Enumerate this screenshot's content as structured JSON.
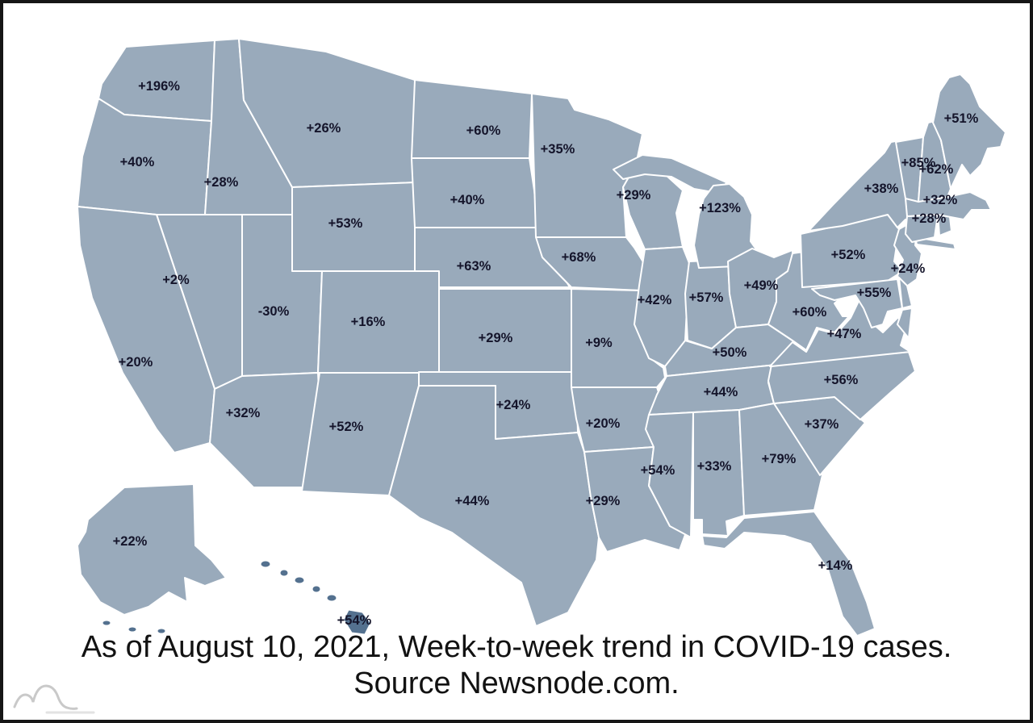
{
  "caption": {
    "line1": "As of August 10, 2021, Week-to-week trend in COVID-19 cases.",
    "line2": "Source Newsnode.com."
  },
  "colors": {
    "negative": "#cddcd9",
    "low": "#a6c4e9",
    "mid": "#6296cd",
    "high": "#54718f",
    "state_border": "#ffffff",
    "label": "#14142a",
    "frame": "#161616",
    "logo_gray": "#c9c9c9"
  },
  "map_data": {
    "type": "choropleth",
    "title": "Week-to-week trend in COVID-19 cases",
    "as_of": "August 10, 2021",
    "source": "Newsnode.com",
    "states": [
      {
        "id": "WA",
        "label": "+196%",
        "value": 196,
        "bin": "high"
      },
      {
        "id": "OR",
        "label": "+40%",
        "value": 40,
        "bin": "mid"
      },
      {
        "id": "CA",
        "label": "+20%",
        "value": 20,
        "bin": "low"
      },
      {
        "id": "NV",
        "label": "+2%",
        "value": 2,
        "bin": "low"
      },
      {
        "id": "ID",
        "label": "+28%",
        "value": 28,
        "bin": "mid"
      },
      {
        "id": "MT",
        "label": "+26%",
        "value": 26,
        "bin": "mid"
      },
      {
        "id": "WY",
        "label": "+53%",
        "value": 53,
        "bin": "high"
      },
      {
        "id": "UT",
        "label": "-30%",
        "value": -30,
        "bin": "negative"
      },
      {
        "id": "CO",
        "label": "+16%",
        "value": 16,
        "bin": "low"
      },
      {
        "id": "AZ",
        "label": "+32%",
        "value": 32,
        "bin": "mid"
      },
      {
        "id": "NM",
        "label": "+52%",
        "value": 52,
        "bin": "high"
      },
      {
        "id": "ND",
        "label": "+60%",
        "value": 60,
        "bin": "high"
      },
      {
        "id": "SD",
        "label": "+40%",
        "value": 40,
        "bin": "mid"
      },
      {
        "id": "NE",
        "label": "+63%",
        "value": 63,
        "bin": "high"
      },
      {
        "id": "KS",
        "label": "+29%",
        "value": 29,
        "bin": "mid"
      },
      {
        "id": "OK",
        "label": "+24%",
        "value": 24,
        "bin": "low"
      },
      {
        "id": "TX",
        "label": "+44%",
        "value": 44,
        "bin": "mid"
      },
      {
        "id": "MN",
        "label": "+35%",
        "value": 35,
        "bin": "mid"
      },
      {
        "id": "IA",
        "label": "+68%",
        "value": 68,
        "bin": "high"
      },
      {
        "id": "MO",
        "label": "+9%",
        "value": 9,
        "bin": "low"
      },
      {
        "id": "AR",
        "label": "+20%",
        "value": 20,
        "bin": "low"
      },
      {
        "id": "LA",
        "label": "+29%",
        "value": 29,
        "bin": "mid"
      },
      {
        "id": "WI",
        "label": "+29%",
        "value": 29,
        "bin": "mid"
      },
      {
        "id": "IL",
        "label": "+42%",
        "value": 42,
        "bin": "mid"
      },
      {
        "id": "IN",
        "label": "+57%",
        "value": 57,
        "bin": "high"
      },
      {
        "id": "MI",
        "label": "+123%",
        "value": 123,
        "bin": "high"
      },
      {
        "id": "OH",
        "label": "+49%",
        "value": 49,
        "bin": "mid"
      },
      {
        "id": "KY",
        "label": "+50%",
        "value": 50,
        "bin": "mid"
      },
      {
        "id": "TN",
        "label": "+44%",
        "value": 44,
        "bin": "mid"
      },
      {
        "id": "MS",
        "label": "+54%",
        "value": 54,
        "bin": "high"
      },
      {
        "id": "AL",
        "label": "+33%",
        "value": 33,
        "bin": "mid"
      },
      {
        "id": "GA",
        "label": "+79%",
        "value": 79,
        "bin": "high"
      },
      {
        "id": "FL",
        "label": "+14%",
        "value": 14,
        "bin": "low"
      },
      {
        "id": "SC",
        "label": "+37%",
        "value": 37,
        "bin": "mid"
      },
      {
        "id": "NC",
        "label": "+56%",
        "value": 56,
        "bin": "high"
      },
      {
        "id": "VA",
        "label": "+47%",
        "value": 47,
        "bin": "mid"
      },
      {
        "id": "WV",
        "label": "+60%",
        "value": 60,
        "bin": "high"
      },
      {
        "id": "PA",
        "label": "+52%",
        "value": 52,
        "bin": "high"
      },
      {
        "id": "NY",
        "label": "+38%",
        "value": 38,
        "bin": "mid"
      },
      {
        "id": "NJ",
        "label": "+24%",
        "value": 24,
        "bin": "low"
      },
      {
        "id": "MD",
        "label": "+55%",
        "value": 55,
        "bin": "high"
      },
      {
        "id": "DE",
        "label": "",
        "bin": "mid"
      },
      {
        "id": "CT",
        "label": "+28%",
        "value": 28,
        "bin": "mid"
      },
      {
        "id": "RI",
        "label": "",
        "bin": "high"
      },
      {
        "id": "MA",
        "label": "+32%",
        "value": 32,
        "bin": "mid"
      },
      {
        "id": "VT",
        "label": "+85%",
        "value": 85,
        "bin": "high"
      },
      {
        "id": "NH",
        "label": "+62%",
        "value": 62,
        "bin": "high"
      },
      {
        "id": "ME",
        "label": "+51%",
        "value": 51,
        "bin": "high"
      },
      {
        "id": "AK",
        "label": "+22%",
        "value": 22,
        "bin": "low"
      },
      {
        "id": "HI",
        "label": "+54%",
        "value": 54,
        "bin": "high"
      }
    ]
  }
}
